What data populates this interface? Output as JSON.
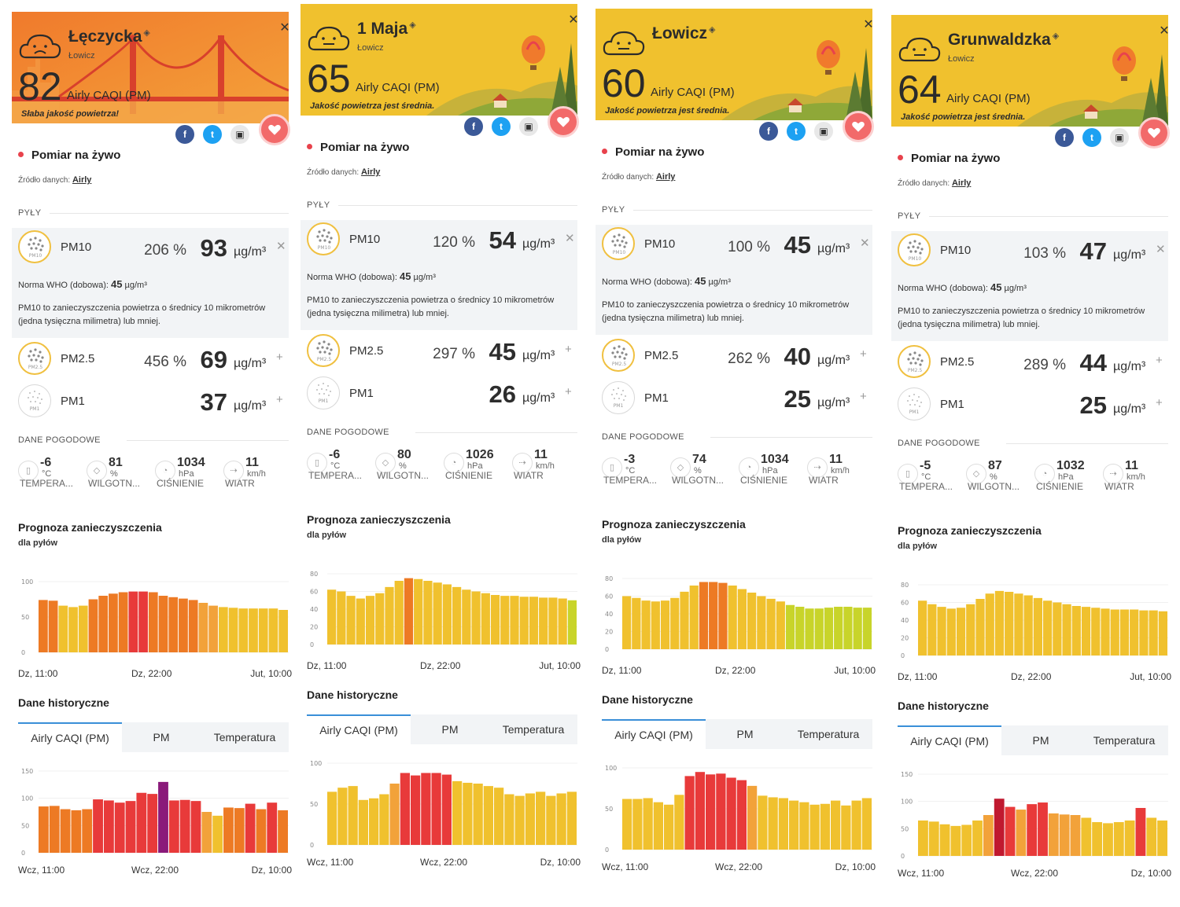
{
  "colors": {
    "orange": "#f2a23a",
    "yellow": "#f0c12e",
    "red": "#e83a3a",
    "darkred": "#c0192f",
    "purple": "#8a1a7a",
    "lime": "#c8d42a",
    "dorange": "#ed7a24"
  },
  "panels": [
    {
      "name": "Łęczycka",
      "city": "Łowicz",
      "caqi": "82",
      "caqi_unit": "Airly CAQI (PM)",
      "message": "Słaba jakość powietrza!",
      "theme": "orange",
      "live": "Pomiar na żywo",
      "source_label": "Źródło danych:",
      "source": "Airly",
      "pyly": "PYŁY",
      "pm10": {
        "name": "PM10",
        "pct": "206 %",
        "value": "93",
        "unit": "µg/m³"
      },
      "who_label": "Norma WHO (dobowa):",
      "who_value": "45",
      "who_unit": "µg/m³",
      "desc": "PM10 to zanieczyszczenia powietrza o średnicy 10 mikrometrów (jedna tysięczna milimetra) lub mniej.",
      "pm25": {
        "name": "PM2.5",
        "pct": "456 %",
        "value": "69",
        "unit": "µg/m³"
      },
      "pm1": {
        "name": "PM1",
        "pct": "",
        "value": "37",
        "unit": "µg/m³"
      },
      "weather_label": "DANE POGODOWE",
      "weather": [
        {
          "v": "-6",
          "u": "°C",
          "l": "TEMPERA..."
        },
        {
          "v": "81",
          "u": "%",
          "l": "WILGOTN..."
        },
        {
          "v": "1034",
          "u": "hPa",
          "l": "CIŚNIENIE"
        },
        {
          "v": "11",
          "u": "km/h",
          "l": "WIATR"
        }
      ],
      "forecast_title": "Prognoza zanieczyszczenia",
      "forecast_sub": "dla pyłów",
      "forecast": {
        "yticks": [
          "100",
          "50",
          "0"
        ],
        "ymax": 100,
        "values": [
          74,
          73,
          66,
          64,
          66,
          75,
          80,
          83,
          85,
          86,
          86,
          85,
          80,
          78,
          76,
          74,
          70,
          66,
          64,
          63,
          62,
          62,
          62,
          62,
          60
        ],
        "colors": [
          "dorange",
          "dorange",
          "yellow",
          "yellow",
          "yellow",
          "dorange",
          "dorange",
          "dorange",
          "dorange",
          "red",
          "red",
          "dorange",
          "dorange",
          "dorange",
          "dorange",
          "dorange",
          "orange",
          "orange",
          "yellow",
          "yellow",
          "yellow",
          "yellow",
          "yellow",
          "yellow",
          "yellow"
        ],
        "xlabels": [
          "Dz, 11:00",
          "Dz, 22:00",
          "Jut, 10:00"
        ]
      },
      "history_title": "Dane historyczne",
      "tabs": [
        "Airly CAQI (PM)",
        "PM",
        "Temperatura"
      ],
      "history": {
        "yticks": [
          "150",
          "100",
          "50",
          "0"
        ],
        "ymax": 150,
        "values": [
          85,
          86,
          80,
          78,
          80,
          98,
          96,
          92,
          95,
          110,
          108,
          130,
          96,
          97,
          95,
          75,
          68,
          83,
          82,
          90,
          80,
          92,
          78
        ],
        "colors": [
          "dorange",
          "dorange",
          "dorange",
          "dorange",
          "dorange",
          "red",
          "red",
          "red",
          "red",
          "red",
          "red",
          "purple",
          "red",
          "red",
          "red",
          "orange",
          "yellow",
          "dorange",
          "dorange",
          "red",
          "dorange",
          "red",
          "dorange"
        ],
        "xlabels": [
          "Wcz, 11:00",
          "Wcz, 22:00",
          "Dz, 10:00"
        ]
      }
    },
    {
      "name": "1 Maja",
      "city": "Łowicz",
      "caqi": "65",
      "caqi_unit": "Airly CAQI (PM)",
      "message": "Jakość powietrza jest średnia.",
      "theme": "yellow",
      "live": "Pomiar na żywo",
      "source_label": "Źródło danych:",
      "source": "Airly",
      "pyly": "PYŁY",
      "pm10": {
        "name": "PM10",
        "pct": "120 %",
        "value": "54",
        "unit": "µg/m³"
      },
      "who_label": "Norma WHO (dobowa):",
      "who_value": "45",
      "who_unit": "µg/m³",
      "desc": "PM10 to zanieczyszczenia powietrza o średnicy 10 mikrometrów (jedna tysięczna milimetra) lub mniej.",
      "pm25": {
        "name": "PM2.5",
        "pct": "297 %",
        "value": "45",
        "unit": "µg/m³"
      },
      "pm1": {
        "name": "PM1",
        "pct": "",
        "value": "26",
        "unit": "µg/m³"
      },
      "weather_label": "DANE POGODOWE",
      "weather": [
        {
          "v": "-6",
          "u": "°C",
          "l": "TEMPERA..."
        },
        {
          "v": "80",
          "u": "%",
          "l": "WILGOTN..."
        },
        {
          "v": "1026",
          "u": "hPa",
          "l": "CIŚNIENIE"
        },
        {
          "v": "11",
          "u": "km/h",
          "l": "WIATR"
        }
      ],
      "forecast_title": "Prognoza zanieczyszczenia",
      "forecast_sub": "dla pyłów",
      "forecast": {
        "yticks": [
          "80",
          "60",
          "40",
          "20",
          "0"
        ],
        "ymax": 80,
        "values": [
          62,
          60,
          55,
          52,
          55,
          58,
          65,
          72,
          75,
          74,
          72,
          70,
          68,
          65,
          62,
          60,
          58,
          56,
          55,
          55,
          54,
          54,
          53,
          53,
          52,
          50
        ],
        "colors": [
          "yellow",
          "yellow",
          "yellow",
          "yellow",
          "yellow",
          "yellow",
          "yellow",
          "yellow",
          "dorange",
          "yellow",
          "yellow",
          "yellow",
          "yellow",
          "yellow",
          "yellow",
          "yellow",
          "yellow",
          "yellow",
          "yellow",
          "yellow",
          "yellow",
          "yellow",
          "yellow",
          "yellow",
          "yellow",
          "lime"
        ],
        "xlabels": [
          "Dz, 11:00",
          "Dz, 22:00",
          "Jut, 10:00"
        ]
      },
      "history_title": "Dane historyczne",
      "tabs": [
        "Airly CAQI (PM)",
        "PM",
        "Temperatura"
      ],
      "history": {
        "yticks": [
          "100",
          "50",
          "0"
        ],
        "ymax": 100,
        "values": [
          65,
          70,
          72,
          55,
          57,
          62,
          75,
          88,
          85,
          88,
          88,
          86,
          78,
          76,
          75,
          72,
          70,
          62,
          60,
          63,
          65,
          60,
          63,
          65
        ],
        "colors": [
          "yellow",
          "yellow",
          "yellow",
          "yellow",
          "yellow",
          "yellow",
          "orange",
          "red",
          "red",
          "red",
          "red",
          "red",
          "yellow",
          "yellow",
          "yellow",
          "yellow",
          "yellow",
          "yellow",
          "yellow",
          "yellow",
          "yellow",
          "yellow",
          "yellow",
          "yellow"
        ],
        "xlabels": [
          "Wcz, 11:00",
          "Wcz, 22:00",
          "Dz, 10:00"
        ]
      }
    },
    {
      "name": "Łowicz",
      "city": "",
      "caqi": "60",
      "caqi_unit": "Airly CAQI (PM)",
      "message": "Jakość powietrza jest średnia.",
      "theme": "yellow",
      "live": "Pomiar na żywo",
      "source_label": "Źródło danych:",
      "source": "Airly",
      "pyly": "PYŁY",
      "pm10": {
        "name": "PM10",
        "pct": "100 %",
        "value": "45",
        "unit": "µg/m³"
      },
      "who_label": "Norma WHO (dobowa):",
      "who_value": "45",
      "who_unit": "µg/m³",
      "desc": "PM10 to zanieczyszczenia powietrza o średnicy 10 mikrometrów (jedna tysięczna milimetra) lub mniej.",
      "pm25": {
        "name": "PM2.5",
        "pct": "262 %",
        "value": "40",
        "unit": "µg/m³"
      },
      "pm1": {
        "name": "PM1",
        "pct": "",
        "value": "25",
        "unit": "µg/m³"
      },
      "weather_label": "DANE POGODOWE",
      "weather": [
        {
          "v": "-3",
          "u": "°C",
          "l": "TEMPERA..."
        },
        {
          "v": "74",
          "u": "%",
          "l": "WILGOTN..."
        },
        {
          "v": "1034",
          "u": "hPa",
          "l": "CIŚNIENIE"
        },
        {
          "v": "11",
          "u": "km/h",
          "l": "WIATR"
        }
      ],
      "forecast_title": "Prognoza zanieczyszczenia",
      "forecast_sub": "dla pyłów",
      "forecast": {
        "yticks": [
          "80",
          "60",
          "40",
          "20",
          "0"
        ],
        "ymax": 80,
        "values": [
          60,
          58,
          55,
          54,
          55,
          58,
          65,
          72,
          76,
          76,
          75,
          72,
          68,
          64,
          60,
          57,
          54,
          50,
          48,
          46,
          46,
          47,
          48,
          48,
          47,
          47
        ],
        "colors": [
          "yellow",
          "yellow",
          "yellow",
          "yellow",
          "yellow",
          "yellow",
          "yellow",
          "yellow",
          "dorange",
          "dorange",
          "dorange",
          "yellow",
          "yellow",
          "yellow",
          "yellow",
          "yellow",
          "yellow",
          "lime",
          "lime",
          "lime",
          "lime",
          "lime",
          "lime",
          "lime",
          "lime",
          "lime"
        ],
        "xlabels": [
          "Dz, 11:00",
          "Dz, 22:00",
          "Jut, 10:00"
        ]
      },
      "history_title": "Dane historyczne",
      "tabs": [
        "Airly CAQI (PM)",
        "PM",
        "Temperatura"
      ],
      "history": {
        "yticks": [
          "100",
          "50",
          "0"
        ],
        "ymax": 100,
        "values": [
          62,
          62,
          63,
          58,
          55,
          67,
          90,
          95,
          92,
          93,
          88,
          85,
          78,
          66,
          64,
          63,
          60,
          58,
          55,
          56,
          60,
          54,
          60,
          63
        ],
        "colors": [
          "yellow",
          "yellow",
          "yellow",
          "yellow",
          "yellow",
          "yellow",
          "red",
          "red",
          "red",
          "red",
          "red",
          "red",
          "orange",
          "yellow",
          "yellow",
          "yellow",
          "yellow",
          "yellow",
          "yellow",
          "yellow",
          "yellow",
          "yellow",
          "yellow",
          "yellow"
        ],
        "xlabels": [
          "Wcz, 11:00",
          "Wcz, 22:00",
          "Dz, 10:00"
        ]
      }
    },
    {
      "name": "Grunwaldzka",
      "city": "Łowicz",
      "caqi": "64",
      "caqi_unit": "Airly CAQI (PM)",
      "message": "Jakość powietrza jest średnia.",
      "theme": "yellow",
      "live": "Pomiar na żywo",
      "source_label": "Źródło danych:",
      "source": "Airly",
      "pyly": "PYŁY",
      "pm10": {
        "name": "PM10",
        "pct": "103 %",
        "value": "47",
        "unit": "µg/m³"
      },
      "who_label": "Norma WHO (dobowa):",
      "who_value": "45",
      "who_unit": "µg/m³",
      "desc": "PM10 to zanieczyszczenia powietrza o średnicy 10 mikrometrów (jedna tysięczna milimetra) lub mniej.",
      "pm25": {
        "name": "PM2.5",
        "pct": "289 %",
        "value": "44",
        "unit": "µg/m³"
      },
      "pm1": {
        "name": "PM1",
        "pct": "",
        "value": "25",
        "unit": "µg/m³"
      },
      "weather_label": "DANE POGODOWE",
      "weather": [
        {
          "v": "-5",
          "u": "°C",
          "l": "TEMPERA..."
        },
        {
          "v": "87",
          "u": "%",
          "l": "WILGOTN..."
        },
        {
          "v": "1032",
          "u": "hPa",
          "l": "CIŚNIENIE"
        },
        {
          "v": "11",
          "u": "km/h",
          "l": "WIATR"
        }
      ],
      "forecast_title": "Prognoza zanieczyszczenia",
      "forecast_sub": "dla pyłów",
      "forecast": {
        "yticks": [
          "80",
          "60",
          "40",
          "20",
          "0"
        ],
        "ymax": 80,
        "values": [
          62,
          58,
          55,
          53,
          54,
          58,
          64,
          70,
          73,
          72,
          70,
          68,
          65,
          62,
          60,
          58,
          56,
          55,
          54,
          53,
          52,
          52,
          52,
          51,
          51,
          50
        ],
        "colors": [
          "yellow",
          "yellow",
          "yellow",
          "yellow",
          "yellow",
          "yellow",
          "yellow",
          "yellow",
          "yellow",
          "yellow",
          "yellow",
          "yellow",
          "yellow",
          "yellow",
          "yellow",
          "yellow",
          "yellow",
          "yellow",
          "yellow",
          "yellow",
          "yellow",
          "yellow",
          "yellow",
          "yellow",
          "yellow",
          "yellow"
        ],
        "xlabels": [
          "Dz, 11:00",
          "Dz, 22:00",
          "Jut, 10:00"
        ]
      },
      "history_title": "Dane historyczne",
      "tabs": [
        "Airly CAQI (PM)",
        "PM",
        "Temperatura"
      ],
      "history": {
        "yticks": [
          "150",
          "100",
          "50",
          "0"
        ],
        "ymax": 150,
        "values": [
          65,
          63,
          58,
          55,
          57,
          65,
          75,
          105,
          90,
          85,
          95,
          98,
          78,
          76,
          75,
          70,
          62,
          60,
          62,
          65,
          88,
          70,
          65
        ],
        "colors": [
          "yellow",
          "yellow",
          "yellow",
          "yellow",
          "yellow",
          "yellow",
          "orange",
          "darkred",
          "red",
          "orange",
          "red",
          "red",
          "orange",
          "orange",
          "orange",
          "yellow",
          "yellow",
          "yellow",
          "yellow",
          "yellow",
          "red",
          "yellow",
          "yellow"
        ],
        "xlabels": [
          "Wcz, 11:00",
          "Wcz, 22:00",
          "Dz, 10:00"
        ]
      }
    }
  ]
}
